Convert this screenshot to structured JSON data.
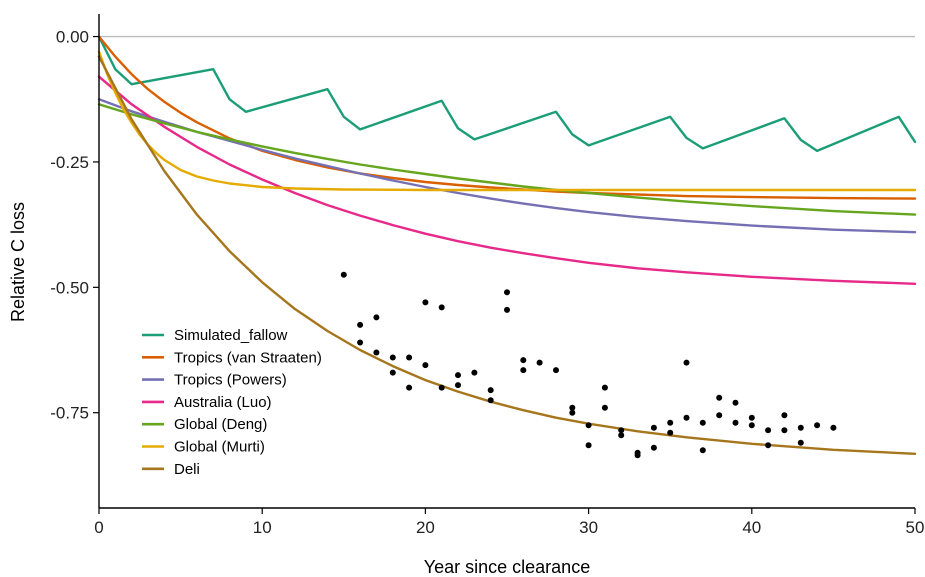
{
  "chart_data": {
    "type": "line",
    "title": "",
    "xlabel": "Year since clearance",
    "ylabel": "Relative C loss",
    "xlim": [
      0,
      50
    ],
    "ylim": [
      -0.94,
      0.045
    ],
    "xticks": [
      0,
      10,
      20,
      30,
      40,
      50
    ],
    "yticks": [
      0.0,
      -0.25,
      -0.5,
      -0.75
    ],
    "ytick_labels": [
      "0.00",
      "-0.25",
      "-0.50",
      "-0.75"
    ],
    "reference_line": {
      "y": 0,
      "color": "#bbbbbb"
    },
    "grid": false,
    "legend": {
      "position": "bottom-left"
    },
    "series": [
      {
        "name": "Simulated_fallow",
        "color": "#1b9e77",
        "x": [
          0,
          1,
          2,
          7,
          8,
          9,
          14,
          15,
          16,
          21,
          22,
          23,
          28,
          29,
          30,
          35,
          36,
          37,
          42,
          43,
          44,
          49,
          50
        ],
        "y": [
          0,
          -0.065,
          -0.095,
          -0.065,
          -0.125,
          -0.15,
          -0.105,
          -0.16,
          -0.185,
          -0.128,
          -0.183,
          -0.205,
          -0.15,
          -0.195,
          -0.217,
          -0.16,
          -0.202,
          -0.223,
          -0.163,
          -0.206,
          -0.228,
          -0.16,
          -0.21
        ]
      },
      {
        "name": "Tropics (van Straaten)",
        "color": "#d95f02",
        "x": [
          0,
          1,
          2,
          3,
          4,
          5,
          6,
          8,
          10,
          12,
          14,
          16,
          18,
          20,
          22,
          24,
          26,
          28,
          30,
          33,
          36,
          40,
          45,
          50
        ],
        "y": [
          0,
          -0.04,
          -0.075,
          -0.105,
          -0.13,
          -0.152,
          -0.171,
          -0.203,
          -0.228,
          -0.246,
          -0.261,
          -0.273,
          -0.282,
          -0.29,
          -0.296,
          -0.301,
          -0.305,
          -0.309,
          -0.312,
          -0.315,
          -0.318,
          -0.32,
          -0.322,
          -0.323
        ]
      },
      {
        "name": "Tropics (Powers)",
        "color": "#7570b3",
        "x": [
          0,
          2,
          4,
          6,
          8,
          10,
          12,
          14,
          16,
          18,
          20,
          22,
          24,
          26,
          28,
          30,
          33,
          36,
          40,
          45,
          50
        ],
        "y": [
          -0.125,
          -0.149,
          -0.17,
          -0.19,
          -0.208,
          -0.226,
          -0.243,
          -0.258,
          -0.273,
          -0.287,
          -0.3,
          -0.312,
          -0.323,
          -0.333,
          -0.342,
          -0.35,
          -0.36,
          -0.368,
          -0.377,
          -0.385,
          -0.39
        ]
      },
      {
        "name": "Australia (Luo)",
        "color": "#e7298a",
        "x": [
          0,
          2,
          4,
          6,
          8,
          10,
          12,
          14,
          16,
          18,
          20,
          22,
          24,
          26,
          28,
          30,
          33,
          36,
          40,
          45,
          50
        ],
        "y": [
          -0.08,
          -0.135,
          -0.18,
          -0.22,
          -0.255,
          -0.285,
          -0.312,
          -0.336,
          -0.357,
          -0.376,
          -0.393,
          -0.408,
          -0.421,
          -0.432,
          -0.442,
          -0.451,
          -0.462,
          -0.47,
          -0.479,
          -0.487,
          -0.493
        ]
      },
      {
        "name": "Global (Deng)",
        "color": "#66a61e",
        "x": [
          0,
          2,
          4,
          6,
          8,
          10,
          12,
          14,
          16,
          18,
          20,
          22,
          24,
          26,
          28,
          30,
          33,
          36,
          40,
          45,
          50
        ],
        "y": [
          -0.135,
          -0.155,
          -0.173,
          -0.19,
          -0.205,
          -0.219,
          -0.232,
          -0.244,
          -0.255,
          -0.265,
          -0.274,
          -0.283,
          -0.291,
          -0.299,
          -0.306,
          -0.312,
          -0.321,
          -0.329,
          -0.338,
          -0.348,
          -0.355
        ]
      },
      {
        "name": "Global (Murti)",
        "color": "#e6ab02",
        "x": [
          0,
          0.5,
          1,
          1.5,
          2,
          2.5,
          3,
          3.5,
          4,
          5,
          6,
          7,
          8,
          10,
          12,
          15,
          20,
          30,
          40,
          50
        ],
        "y": [
          -0.03,
          -0.075,
          -0.112,
          -0.145,
          -0.172,
          -0.196,
          -0.216,
          -0.232,
          -0.246,
          -0.266,
          -0.279,
          -0.287,
          -0.293,
          -0.3,
          -0.303,
          -0.305,
          -0.306,
          -0.306,
          -0.306,
          -0.306
        ]
      },
      {
        "name": "Deli",
        "color": "#a6761d",
        "x": [
          0,
          2,
          4,
          6,
          8,
          10,
          12,
          14,
          16,
          18,
          20,
          22,
          24,
          26,
          28,
          30,
          33,
          36,
          40,
          45,
          50
        ],
        "y": [
          -0.04,
          -0.165,
          -0.268,
          -0.355,
          -0.428,
          -0.49,
          -0.543,
          -0.587,
          -0.625,
          -0.657,
          -0.685,
          -0.708,
          -0.728,
          -0.745,
          -0.76,
          -0.772,
          -0.787,
          -0.799,
          -0.812,
          -0.824,
          -0.832
        ]
      }
    ],
    "scatter": {
      "color": "#000000",
      "x": [
        15,
        16,
        16,
        17,
        17,
        18,
        18,
        19,
        19,
        20,
        20,
        21,
        21,
        22,
        22,
        23,
        24,
        24,
        25,
        25,
        26,
        26,
        27,
        28,
        29,
        29,
        30,
        30,
        31,
        31,
        32,
        32,
        33,
        33,
        34,
        34,
        35,
        35,
        36,
        36,
        37,
        37,
        38,
        38,
        39,
        39,
        40,
        40,
        41,
        41,
        42,
        42,
        43,
        43,
        44,
        45
      ],
      "y": [
        -0.475,
        -0.575,
        -0.61,
        -0.56,
        -0.63,
        -0.64,
        -0.67,
        -0.64,
        -0.7,
        -0.53,
        -0.655,
        -0.54,
        -0.7,
        -0.675,
        -0.695,
        -0.67,
        -0.705,
        -0.725,
        -0.51,
        -0.545,
        -0.645,
        -0.665,
        -0.65,
        -0.665,
        -0.74,
        -0.75,
        -0.775,
        -0.815,
        -0.7,
        -0.74,
        -0.785,
        -0.795,
        -0.83,
        -0.835,
        -0.78,
        -0.82,
        -0.77,
        -0.79,
        -0.65,
        -0.76,
        -0.77,
        -0.825,
        -0.72,
        -0.755,
        -0.73,
        -0.77,
        -0.76,
        -0.775,
        -0.785,
        -0.815,
        -0.755,
        -0.785,
        -0.78,
        -0.81,
        -0.775,
        -0.78
      ]
    }
  }
}
